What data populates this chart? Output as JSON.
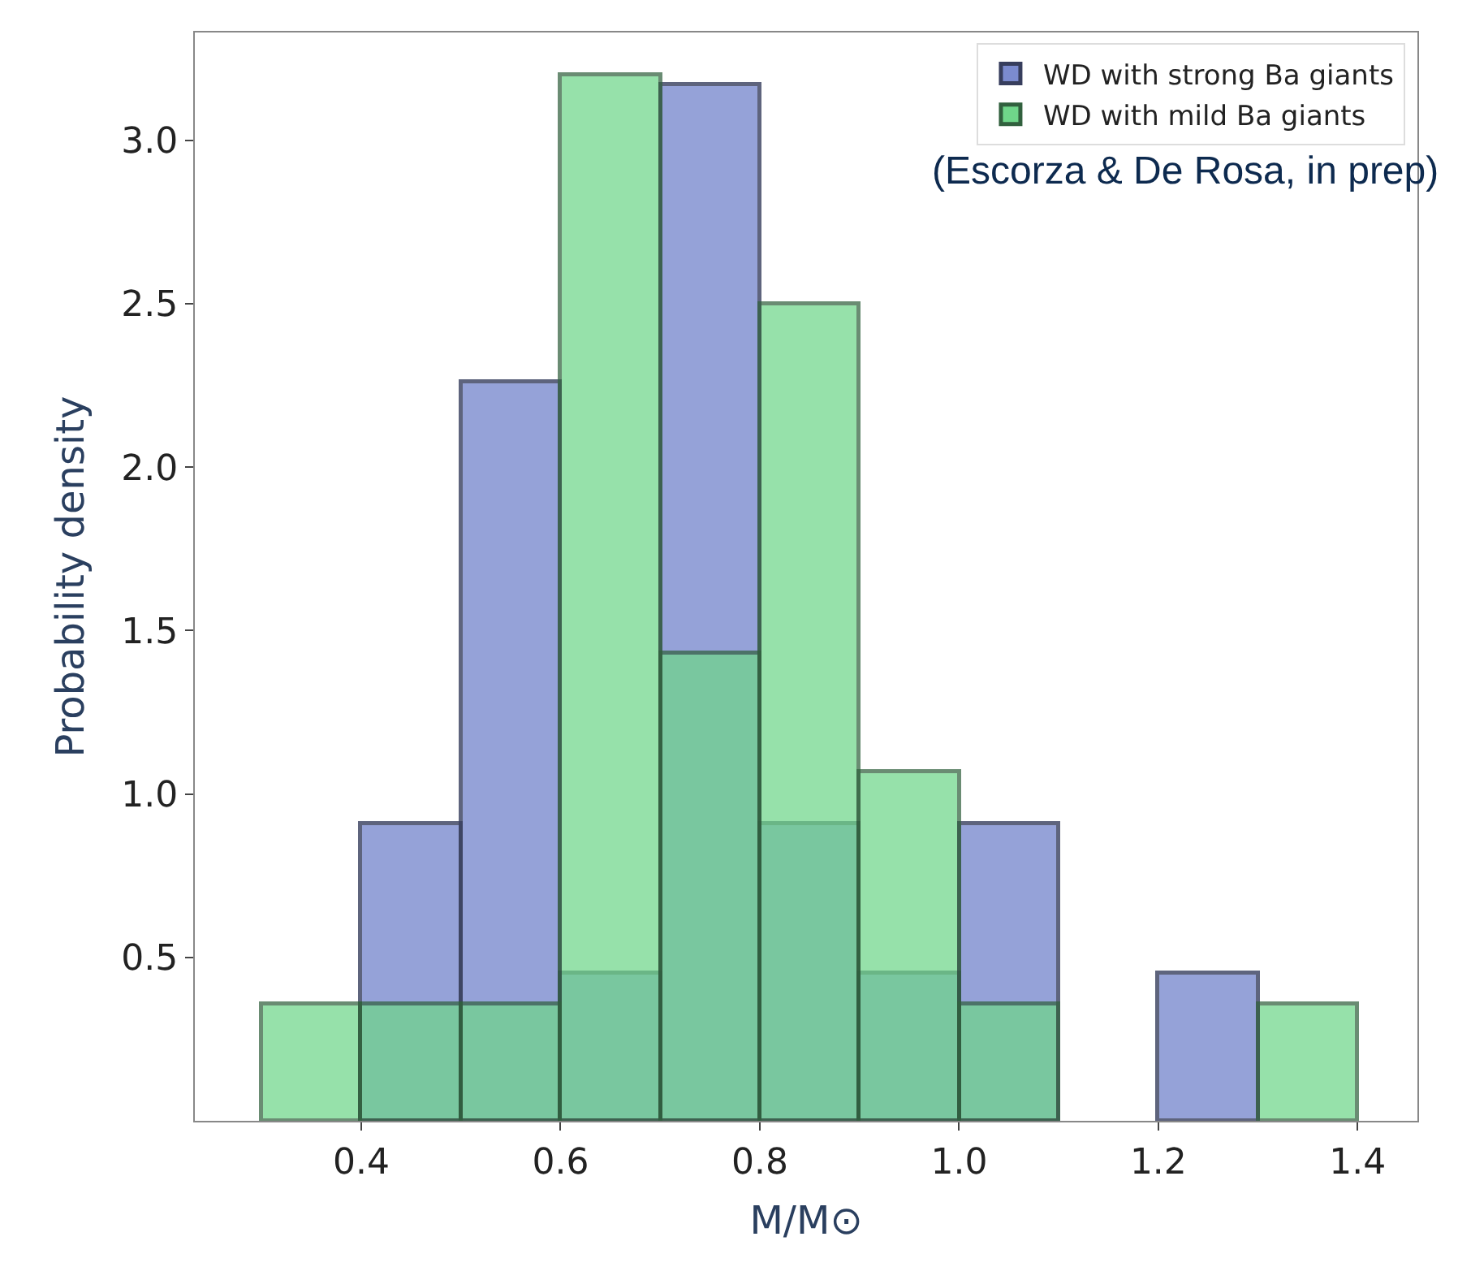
{
  "chart_data": {
    "type": "histogram",
    "xlabel": "M/M⊙",
    "ylabel": "Probability density",
    "bins": [
      0.3,
      0.4,
      0.5,
      0.6,
      0.7,
      0.8,
      0.9,
      1.0,
      1.1,
      1.2,
      1.3,
      1.4
    ],
    "series": [
      {
        "name": "WD with strong Ba giants",
        "color": "#7b8bcf",
        "values": [
          null,
          0.91,
          2.26,
          0.45,
          3.17,
          0.91,
          0.45,
          0.91,
          null,
          0.45,
          null
        ]
      },
      {
        "name": "WD with mild Ba giants",
        "color": "#6fd68a",
        "values": [
          0.36,
          0.36,
          0.36,
          3.2,
          1.43,
          2.5,
          1.07,
          0.36,
          null,
          null,
          0.36
        ]
      }
    ],
    "xlim": [
      0.233,
      1.46
    ],
    "xticks": [
      0.4,
      0.6,
      0.8,
      {
        "value": 1,
        "label": "1.0"
      },
      1.2,
      1.4
    ],
    "ylim": [
      0,
      3.33
    ],
    "yticks": [
      0.5,
      {
        "value": 1,
        "label": "1.0"
      },
      1.5,
      {
        "value": 2,
        "label": "2.0"
      },
      2.5,
      {
        "value": 3,
        "label": "3.0"
      }
    ],
    "annotations": [
      "(Escorza & De Rosa, in prep)"
    ],
    "legend": "top right"
  }
}
